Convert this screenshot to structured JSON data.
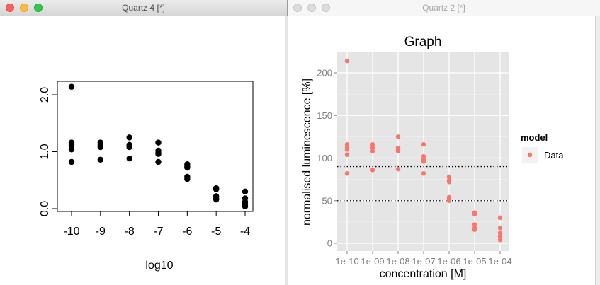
{
  "left_window": {
    "title": "Quartz 4 [*]",
    "chart_data": {
      "type": "scatter",
      "xlabel": "log10",
      "ylabel": "",
      "xticks": [
        "-10",
        "-9",
        "-8",
        "-7",
        "-6",
        "-5",
        "-4"
      ],
      "yticks": [
        "0.0",
        "1.0",
        "2.0"
      ],
      "xlim": [
        -10.3,
        -3.7
      ],
      "ylim": [
        0.0,
        2.2
      ],
      "point_color": "#000000",
      "points": [
        [
          -10,
          2.14
        ],
        [
          -10,
          1.16
        ],
        [
          -10,
          1.12
        ],
        [
          -10,
          1.1
        ],
        [
          -10,
          1.04
        ],
        [
          -10,
          0.82
        ],
        [
          -9,
          1.16
        ],
        [
          -9,
          1.12
        ],
        [
          -9,
          1.08
        ],
        [
          -9,
          0.86
        ],
        [
          -8,
          1.25
        ],
        [
          -8,
          1.12
        ],
        [
          -8,
          1.1
        ],
        [
          -8,
          1.08
        ],
        [
          -8,
          0.88
        ],
        [
          -7,
          1.16
        ],
        [
          -7,
          1.02
        ],
        [
          -7,
          0.98
        ],
        [
          -7,
          0.96
        ],
        [
          -7,
          0.82
        ],
        [
          -6,
          0.78
        ],
        [
          -6,
          0.74
        ],
        [
          -6,
          0.72
        ],
        [
          -6,
          0.56
        ],
        [
          -6,
          0.52
        ],
        [
          -5,
          0.36
        ],
        [
          -5,
          0.34
        ],
        [
          -5,
          0.22
        ],
        [
          -5,
          0.18
        ],
        [
          -5,
          0.16
        ],
        [
          -4,
          0.3
        ],
        [
          -4,
          0.18
        ],
        [
          -4,
          0.12
        ],
        [
          -4,
          0.08
        ],
        [
          -4,
          0.04
        ]
      ]
    }
  },
  "right_window": {
    "title": "Quartz 2 [*]",
    "chart_data": {
      "type": "scatter",
      "title": "Graph",
      "xlabel": "concentration [M]",
      "ylabel": "normalised luminescence [%]",
      "categories": [
        "1e-10",
        "1e-09",
        "1e-08",
        "1e-07",
        "1e-06",
        "1e-05",
        "1e-04"
      ],
      "yticks": [
        "0",
        "50",
        "100",
        "150",
        "200"
      ],
      "ylim": [
        -7,
        222
      ],
      "hlines": [
        90,
        50
      ],
      "grid": true,
      "panel_color": "#e5e5e5",
      "point_color": "#f8766d",
      "legend": {
        "title": "model",
        "entries": [
          "Data"
        ],
        "position": "right"
      },
      "series": [
        {
          "name": "Data",
          "points": [
            [
              "1e-10",
              214
            ],
            [
              "1e-10",
              116
            ],
            [
              "1e-10",
              112
            ],
            [
              "1e-10",
              110
            ],
            [
              "1e-10",
              104
            ],
            [
              "1e-10",
              82
            ],
            [
              "1e-09",
              116
            ],
            [
              "1e-09",
              112
            ],
            [
              "1e-09",
              108
            ],
            [
              "1e-09",
              86
            ],
            [
              "1e-08",
              125
            ],
            [
              "1e-08",
              112
            ],
            [
              "1e-08",
              110
            ],
            [
              "1e-08",
              108
            ],
            [
              "1e-08",
              87
            ],
            [
              "1e-07",
              116
            ],
            [
              "1e-07",
              102
            ],
            [
              "1e-07",
              98
            ],
            [
              "1e-07",
              96
            ],
            [
              "1e-07",
              82
            ],
            [
              "1e-06",
              78
            ],
            [
              "1e-06",
              74
            ],
            [
              "1e-06",
              72
            ],
            [
              "1e-06",
              54
            ],
            [
              "1e-06",
              52
            ],
            [
              "1e-06",
              50
            ],
            [
              "1e-05",
              36
            ],
            [
              "1e-05",
              34
            ],
            [
              "1e-05",
              22
            ],
            [
              "1e-05",
              18
            ],
            [
              "1e-05",
              16
            ],
            [
              "1e-04",
              30
            ],
            [
              "1e-04",
              18
            ],
            [
              "1e-04",
              12
            ],
            [
              "1e-04",
              8
            ],
            [
              "1e-04",
              4
            ]
          ]
        }
      ]
    }
  }
}
